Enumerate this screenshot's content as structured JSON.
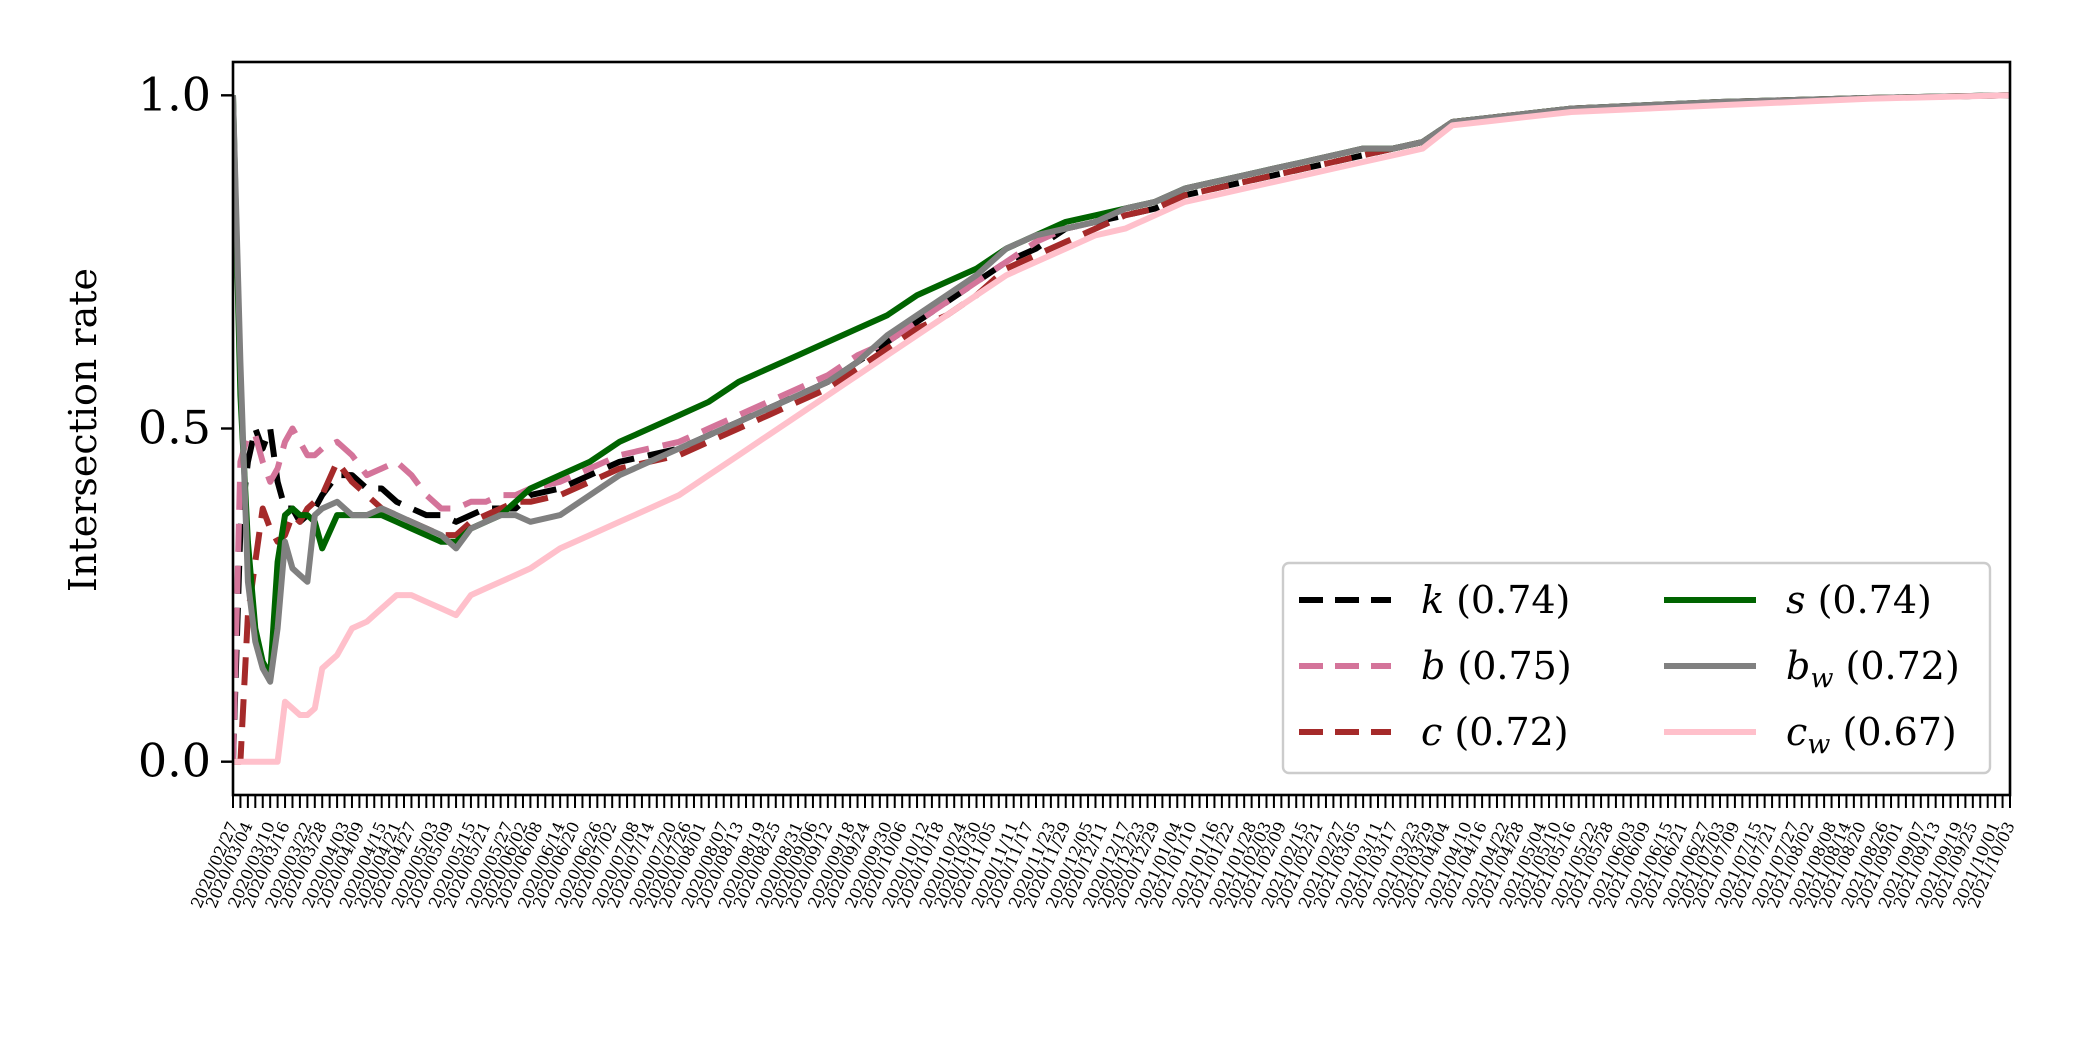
{
  "chart_data": {
    "type": "line",
    "title": "",
    "xlabel": "",
    "ylabel": "Intersection rate",
    "ylim": [
      -0.05,
      1.05
    ],
    "yticks": [
      0.0,
      0.5,
      1.0
    ],
    "ytick_labels": [
      "0.0",
      "0.5",
      "1.0"
    ],
    "grid": false,
    "legend_position": "lower right",
    "legend_columns": 2,
    "x_tick_count": 240,
    "x_tick_labels_visible": [
      "2020/02/27",
      "2020/03/04",
      "2020/03/10",
      "2020/03/16",
      "2020/03/22",
      "2020/03/28",
      "2020/04/03",
      "2020/04/09",
      "2020/04/15",
      "2020/04/21",
      "2020/04/27",
      "2020/05/03",
      "2020/05/09",
      "2020/05/15",
      "2020/05/21",
      "2020/05/27",
      "2020/06/02",
      "2020/06/08",
      "2020/06/14",
      "2020/06/20",
      "2020/06/26",
      "2020/07/02",
      "2020/07/08",
      "2020/07/14",
      "2020/07/20",
      "2020/07/26",
      "2020/08/01",
      "2020/08/07",
      "2020/08/13",
      "2020/08/19",
      "2020/08/25",
      "2020/08/31",
      "2020/09/06",
      "2020/09/12",
      "2020/09/18",
      "2020/09/24",
      "2020/09/30",
      "2020/10/06",
      "2020/10/12",
      "2020/10/18",
      "2020/10/24",
      "2020/10/30",
      "2020/11/05",
      "2020/11/11",
      "2020/11/17",
      "2020/11/23",
      "2020/11/29",
      "2020/12/05",
      "2020/12/11",
      "2020/12/17",
      "2020/12/23",
      "2020/12/29",
      "2021/01/04",
      "2021/01/10",
      "2021/01/16",
      "2021/01/22",
      "2021/01/28",
      "2021/02/03",
      "2021/02/09",
      "2021/02/15",
      "2021/02/21",
      "2021/02/27",
      "2021/03/05",
      "2021/03/11",
      "2021/03/17",
      "2021/03/23",
      "2021/03/29",
      "2021/04/04",
      "2021/04/10",
      "2021/04/16",
      "2021/04/22",
      "2021/04/28",
      "2021/05/04",
      "2021/05/10",
      "2021/05/16",
      "2021/05/22",
      "2021/05/28",
      "2021/06/03",
      "2021/06/09",
      "2021/06/15",
      "2021/06/21",
      "2021/06/27",
      "2021/07/03",
      "2021/07/09",
      "2021/07/15",
      "2021/07/21",
      "2021/07/27",
      "2021/08/02",
      "2021/08/08",
      "2021/08/14",
      "2021/08/20",
      "2021/08/26",
      "2021/09/01",
      "2021/09/07",
      "2021/09/13",
      "2021/09/19",
      "2021/09/25",
      "2021/10/01",
      "2021/10/03"
    ],
    "x": [
      0,
      1,
      2,
      3,
      4,
      5,
      6,
      7,
      8,
      9,
      10,
      11,
      12,
      14,
      16,
      18,
      20,
      22,
      24,
      26,
      28,
      30,
      32,
      34,
      36,
      38,
      40,
      44,
      48,
      52,
      56,
      60,
      64,
      68,
      72,
      76,
      80,
      84,
      88,
      92,
      96,
      100,
      104,
      108,
      112,
      116,
      120,
      124,
      128,
      132,
      136,
      140,
      144,
      148,
      152,
      156,
      160,
      164,
      168,
      172,
      176,
      180,
      190,
      200,
      210,
      220,
      239
    ],
    "series": [
      {
        "name": "k (0.74)",
        "label_var": "k",
        "label_sub": "",
        "label_value": "(0.74)",
        "color": "#000000",
        "dash": "dashed",
        "values": [
          0.0,
          0.35,
          0.45,
          0.5,
          0.47,
          0.5,
          0.42,
          0.38,
          0.38,
          0.36,
          0.37,
          0.38,
          0.4,
          0.43,
          0.43,
          0.41,
          0.41,
          0.39,
          0.38,
          0.37,
          0.37,
          0.36,
          0.37,
          0.38,
          0.38,
          0.38,
          0.4,
          0.41,
          0.43,
          0.45,
          0.46,
          0.47,
          0.49,
          0.51,
          0.53,
          0.55,
          0.57,
          0.6,
          0.63,
          0.66,
          0.69,
          0.72,
          0.75,
          0.77,
          0.8,
          0.81,
          0.82,
          0.83,
          0.85,
          0.86,
          0.87,
          0.88,
          0.89,
          0.9,
          0.91,
          0.92,
          0.93,
          0.96,
          0.965,
          0.97,
          0.975,
          0.98,
          0.985,
          0.99,
          0.993,
          0.996,
          1.0
        ]
      },
      {
        "name": "b (0.75)",
        "label_var": "b",
        "label_sub": "",
        "label_value": "(0.75)",
        "color": "#d4749a",
        "dash": "dashed",
        "values": [
          0.0,
          0.45,
          0.49,
          0.49,
          0.45,
          0.42,
          0.44,
          0.48,
          0.5,
          0.48,
          0.46,
          0.46,
          0.47,
          0.48,
          0.46,
          0.43,
          0.44,
          0.45,
          0.43,
          0.4,
          0.38,
          0.38,
          0.39,
          0.39,
          0.4,
          0.4,
          0.41,
          0.42,
          0.44,
          0.46,
          0.47,
          0.48,
          0.5,
          0.52,
          0.54,
          0.56,
          0.58,
          0.61,
          0.63,
          0.66,
          0.69,
          0.72,
          0.75,
          0.78,
          0.8,
          0.81,
          0.83,
          0.84,
          0.86,
          0.87,
          0.88,
          0.89,
          0.9,
          0.91,
          0.92,
          0.92,
          0.93,
          0.96,
          0.965,
          0.97,
          0.975,
          0.98,
          0.985,
          0.99,
          0.993,
          0.996,
          1.0
        ]
      },
      {
        "name": "c (0.72)",
        "label_var": "c",
        "label_sub": "",
        "label_value": "(0.72)",
        "color": "#a52a2a",
        "dash": "dashed",
        "values": [
          0.0,
          0.0,
          0.22,
          0.3,
          0.38,
          0.35,
          0.33,
          0.34,
          0.37,
          0.36,
          0.38,
          0.39,
          0.4,
          0.45,
          0.42,
          0.4,
          0.38,
          0.37,
          0.36,
          0.35,
          0.34,
          0.34,
          0.36,
          0.37,
          0.38,
          0.39,
          0.39,
          0.4,
          0.42,
          0.44,
          0.45,
          0.46,
          0.48,
          0.5,
          0.52,
          0.54,
          0.56,
          0.59,
          0.62,
          0.65,
          0.67,
          0.7,
          0.74,
          0.76,
          0.78,
          0.8,
          0.82,
          0.83,
          0.85,
          0.86,
          0.87,
          0.88,
          0.89,
          0.9,
          0.91,
          0.92,
          0.93,
          0.96,
          0.965,
          0.97,
          0.975,
          0.98,
          0.985,
          0.99,
          0.993,
          0.996,
          1.0
        ]
      },
      {
        "name": "s (0.74)",
        "label_var": "s",
        "label_sub": "",
        "label_value": "(0.74)",
        "color": "#006400",
        "dash": "solid",
        "values": [
          1.0,
          0.55,
          0.33,
          0.2,
          0.15,
          0.13,
          0.3,
          0.37,
          0.38,
          0.37,
          0.37,
          0.36,
          0.32,
          0.37,
          0.37,
          0.37,
          0.37,
          0.36,
          0.35,
          0.34,
          0.33,
          0.33,
          0.35,
          0.36,
          0.37,
          0.39,
          0.41,
          0.43,
          0.45,
          0.48,
          0.5,
          0.52,
          0.54,
          0.57,
          0.59,
          0.61,
          0.63,
          0.65,
          0.67,
          0.7,
          0.72,
          0.74,
          0.77,
          0.79,
          0.81,
          0.82,
          0.83,
          0.84,
          0.86,
          0.87,
          0.88,
          0.89,
          0.9,
          0.91,
          0.92,
          0.92,
          0.93,
          0.96,
          0.965,
          0.97,
          0.975,
          0.98,
          0.985,
          0.99,
          0.993,
          0.996,
          1.0
        ]
      },
      {
        "name": "b_w (0.72)",
        "label_var": "b",
        "label_sub": "w",
        "label_value": "(0.72)",
        "color": "#808080",
        "dash": "solid",
        "values": [
          1.0,
          0.6,
          0.27,
          0.18,
          0.14,
          0.12,
          0.2,
          0.33,
          0.29,
          0.28,
          0.27,
          0.37,
          0.38,
          0.39,
          0.37,
          0.37,
          0.38,
          0.37,
          0.36,
          0.35,
          0.34,
          0.32,
          0.35,
          0.36,
          0.37,
          0.37,
          0.36,
          0.37,
          0.4,
          0.43,
          0.45,
          0.47,
          0.49,
          0.51,
          0.53,
          0.55,
          0.57,
          0.6,
          0.64,
          0.67,
          0.7,
          0.73,
          0.77,
          0.79,
          0.8,
          0.81,
          0.83,
          0.84,
          0.86,
          0.87,
          0.88,
          0.89,
          0.9,
          0.91,
          0.92,
          0.92,
          0.93,
          0.96,
          0.965,
          0.97,
          0.975,
          0.98,
          0.985,
          0.99,
          0.993,
          0.996,
          1.0
        ]
      },
      {
        "name": "c_w (0.67)",
        "label_var": "c",
        "label_sub": "w",
        "label_value": "(0.67)",
        "color": "#ffc0cb",
        "dash": "solid",
        "values": [
          0.0,
          0.0,
          0.0,
          0.0,
          0.0,
          0.0,
          0.0,
          0.09,
          0.08,
          0.07,
          0.07,
          0.08,
          0.14,
          0.16,
          0.2,
          0.21,
          0.23,
          0.25,
          0.25,
          0.24,
          0.23,
          0.22,
          0.25,
          0.26,
          0.27,
          0.28,
          0.29,
          0.32,
          0.34,
          0.36,
          0.38,
          0.4,
          0.43,
          0.46,
          0.49,
          0.52,
          0.55,
          0.58,
          0.61,
          0.64,
          0.67,
          0.7,
          0.73,
          0.75,
          0.77,
          0.79,
          0.8,
          0.82,
          0.84,
          0.85,
          0.86,
          0.87,
          0.88,
          0.89,
          0.9,
          0.91,
          0.92,
          0.955,
          0.96,
          0.965,
          0.97,
          0.975,
          0.98,
          0.985,
          0.99,
          0.995,
          1.0
        ]
      }
    ]
  }
}
